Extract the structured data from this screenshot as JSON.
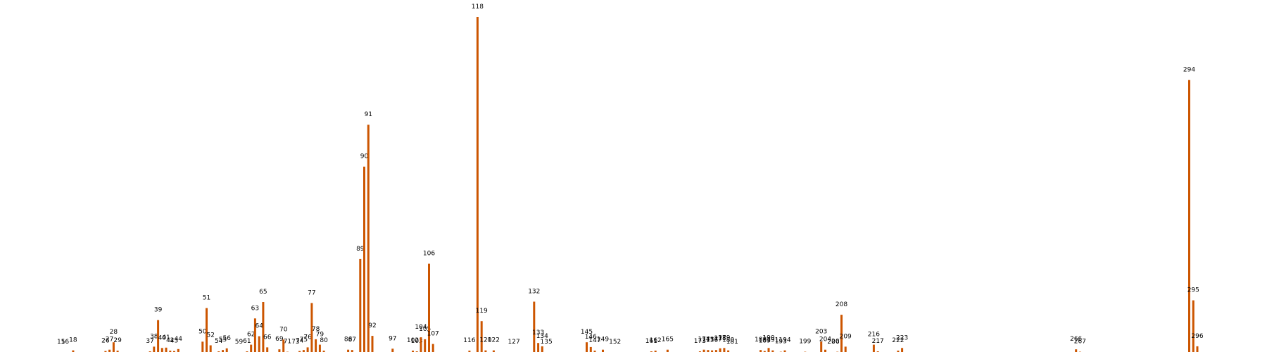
{
  "chart_data": {
    "type": "bar",
    "color": "#cc5500",
    "title": "",
    "xlabel": "",
    "ylabel": "",
    "xlim": [
      0,
      300
    ],
    "ylim": [
      0,
      1
    ],
    "grid": false,
    "legend": "none",
    "x": [
      15,
      16,
      18,
      26,
      27,
      28,
      29,
      37,
      38,
      39,
      40,
      41,
      42,
      43,
      44,
      50,
      51,
      52,
      54,
      55,
      56,
      59,
      61,
      62,
      63,
      64,
      65,
      66,
      69,
      70,
      71,
      73,
      74,
      75,
      76,
      77,
      78,
      79,
      80,
      86,
      87,
      89,
      90,
      91,
      92,
      97,
      102,
      103,
      104,
      105,
      106,
      107,
      116,
      118,
      119,
      120,
      122,
      127,
      132,
      133,
      134,
      135,
      145,
      146,
      147,
      149,
      152,
      161,
      162,
      165,
      173,
      174,
      175,
      176,
      177,
      178,
      179,
      180,
      181,
      188,
      189,
      190,
      191,
      193,
      194,
      199,
      203,
      204,
      206,
      207,
      208,
      209,
      216,
      217,
      222,
      223,
      266,
      267,
      294,
      295,
      296
    ],
    "labels": [
      "15",
      "16",
      "18",
      "26",
      "27",
      "28",
      "29",
      "37",
      "38",
      "39",
      "40",
      "41",
      "42",
      "43",
      "44",
      "50",
      "51",
      "52",
      "54",
      "55",
      "56",
      "59",
      "61",
      "62",
      "63",
      "64",
      "65",
      "66",
      "69",
      "70",
      "71",
      "73",
      "74",
      "75",
      "76",
      "77",
      "78",
      "79",
      "80",
      "86",
      "87",
      "89",
      "90",
      "91",
      "92",
      "97",
      "102",
      "103",
      "104",
      "105",
      "106",
      "107",
      "116",
      "118",
      "119",
      "120",
      "122",
      "127",
      "132",
      "133",
      "134",
      "135",
      "145",
      "146",
      "147",
      "149",
      "152",
      "161",
      "162",
      "165",
      "173",
      "174",
      "175",
      "176",
      "177",
      "178",
      "179",
      "180",
      "181",
      "188",
      "189",
      "190",
      "191",
      "193",
      "194",
      "199",
      "203",
      "204",
      "206",
      "207",
      "208",
      "209",
      "216",
      "217",
      "222",
      "223",
      "266",
      "267",
      "294",
      "295",
      "296"
    ],
    "values": [
      0.002,
      0.001,
      0.007,
      0.005,
      0.009,
      0.031,
      0.006,
      0.004,
      0.018,
      0.097,
      0.014,
      0.015,
      0.006,
      0.005,
      0.011,
      0.033,
      0.133,
      0.022,
      0.004,
      0.008,
      0.013,
      0.002,
      0.004,
      0.024,
      0.102,
      0.049,
      0.151,
      0.016,
      0.01,
      0.039,
      0.003,
      0.001,
      0.005,
      0.008,
      0.016,
      0.148,
      0.04,
      0.024,
      0.006,
      0.009,
      0.008,
      0.279,
      0.554,
      0.679,
      0.05,
      0.012,
      0.006,
      0.004,
      0.046,
      0.04,
      0.265,
      0.026,
      0.006,
      1.0,
      0.094,
      0.007,
      0.007,
      0.001,
      0.152,
      0.029,
      0.019,
      0.001,
      0.031,
      0.017,
      0.006,
      0.009,
      0.001,
      0.004,
      0.006,
      0.009,
      0.004,
      0.009,
      0.008,
      0.007,
      0.008,
      0.013,
      0.014,
      0.007,
      0.001,
      0.008,
      0.005,
      0.014,
      0.007,
      0.003,
      0.007,
      0.003,
      0.033,
      0.009,
      0.001,
      0.003,
      0.113,
      0.018,
      0.024,
      0.004,
      0.006,
      0.014,
      0.01,
      0.003,
      0.812,
      0.156,
      0.019
    ]
  }
}
